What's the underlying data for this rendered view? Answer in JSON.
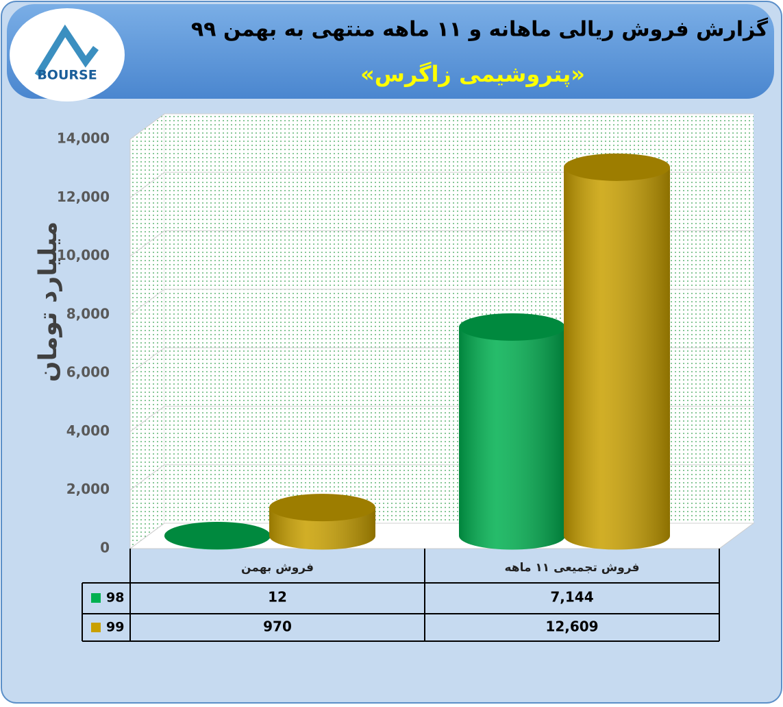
{
  "logo": {
    "text": "BOURSE"
  },
  "chart_data": {
    "type": "bar",
    "title": "گزارش فروش ریالی ماهانه و ۱۱ ماهه منتهی به بهمن ۹۹",
    "subtitle": "«پتروشیمی زاگرس»",
    "y_label": "میلیارد تومان",
    "categories": [
      "فروش بهمن",
      "فروش تجمیعی ۱۱ ماهه"
    ],
    "series": [
      {
        "name": "98",
        "color": "#00b050",
        "values": [
          12,
          7144
        ],
        "value_labels": [
          "12",
          "7,144"
        ]
      },
      {
        "name": "99",
        "color": "#c9a000",
        "values": [
          970,
          12609
        ],
        "value_labels": [
          "970",
          "12,609"
        ]
      }
    ],
    "ylim": [
      0,
      14000
    ],
    "yticks": [
      0,
      {
        "value": 2000,
        "label": "2,000"
      },
      {
        "value": 4000,
        "label": "4,000"
      },
      {
        "value": 6000,
        "label": "6,000"
      },
      {
        "value": 8000,
        "label": "8,000"
      },
      {
        "value": 10000,
        "label": "10,000"
      },
      {
        "value": 12000,
        "label": "12,000"
      },
      {
        "value": 14000,
        "label": "14,000"
      }
    ],
    "grid": true,
    "legend": "table"
  }
}
